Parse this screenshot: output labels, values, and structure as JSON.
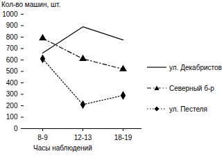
{
  "chart_data": {
    "type": "line",
    "y_label": "Кол-во машин, шт.",
    "x_label": "Часы наблюдений",
    "categories": [
      "8-9",
      "12-13",
      "18-19"
    ],
    "series": [
      {
        "name": "ул. Декабристов",
        "color": "#000000",
        "line_style": "solid",
        "marker": "none",
        "values": [
          660,
          890,
          775
        ]
      },
      {
        "name": "Северный б-р",
        "color": "#000000",
        "line_style": "dashdot",
        "marker": "triangle",
        "values": [
          790,
          610,
          520
        ]
      },
      {
        "name": "ул. Пестеля",
        "color": "#000000",
        "line_style": "dotted",
        "marker": "diamond",
        "values": [
          610,
          210,
          290
        ]
      }
    ],
    "ylim": [
      0,
      1000
    ],
    "yticks": [
      0,
      100,
      200,
      300,
      400,
      500,
      600,
      700,
      800,
      900,
      1000
    ],
    "grid": false,
    "legend": "right"
  }
}
